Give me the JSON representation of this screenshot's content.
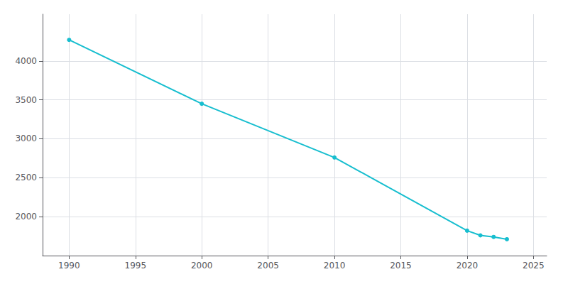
{
  "chart_data": {
    "type": "line",
    "x": [
      1990,
      2000,
      2010,
      2020,
      2021,
      2022,
      2023
    ],
    "values": [
      4270,
      3450,
      2760,
      1820,
      1760,
      1740,
      1710
    ],
    "color": "#17BECF",
    "marker": "circle",
    "xlim": [
      1988,
      2026
    ],
    "ylim": [
      1500,
      4600
    ],
    "xticks": [
      1990,
      1995,
      2000,
      2005,
      2010,
      2015,
      2020,
      2025
    ],
    "yticks": [
      2000,
      2500,
      3000,
      3500,
      4000
    ],
    "grid": true
  }
}
